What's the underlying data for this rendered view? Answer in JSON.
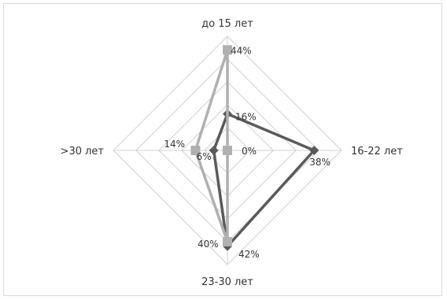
{
  "chart_data": {
    "type": "radar",
    "title": "",
    "categories": [
      "до 15 лет",
      "16-22 лет",
      "23-30 лет",
      ">30  лет"
    ],
    "rlim": [
      0,
      50
    ],
    "grid": true,
    "legend": "none",
    "series": [
      {
        "values": [
          16,
          38,
          42,
          6
        ],
        "labels": [
          "16%",
          "38%",
          "42%",
          "6%"
        ],
        "color": "#5a5a5a",
        "marker": "diamond"
      },
      {
        "values": [
          44,
          0,
          40,
          14
        ],
        "labels": [
          "44%",
          "0%",
          "40%",
          "14%"
        ],
        "color": "#b0b0b0",
        "marker": "square"
      }
    ]
  }
}
